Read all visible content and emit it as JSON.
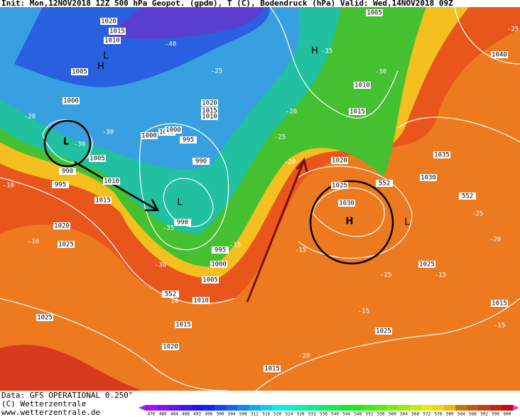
{
  "header": {
    "text": "Init: Mon,12NOV2018 12Z 500 hPa Geopot. (gpdm), T (C), Bodendruck (hPa) Valid: Wed,14NOV2018 09Z"
  },
  "footer": {
    "source": "Data: GFS OPERATIONAL 0.250°",
    "copyright": "(C) Wetterzentrale",
    "url": "www.wetterzentrale.de"
  },
  "colorbar": {
    "labels": [
      476,
      480,
      484,
      488,
      492,
      496,
      500,
      504,
      508,
      512,
      516,
      520,
      524,
      528,
      532,
      536,
      540,
      544,
      548,
      552,
      556,
      560,
      564,
      568,
      572,
      576,
      580,
      584,
      588,
      592,
      596,
      600
    ]
  },
  "isobar_labels": [
    "1020",
    "1015",
    "1010",
    "1005",
    "1000",
    "1005",
    "1010",
    "1015",
    "1020",
    "1025",
    "995",
    "990",
    "1000",
    "1005",
    "1000",
    "995",
    "990",
    "990",
    "995",
    "1000",
    "1005",
    "1010",
    "1015",
    "1020",
    "1025",
    "1015",
    "1025",
    "1025",
    "1030",
    "1035",
    "1040",
    "1020",
    "1025",
    "1030",
    "1015",
    "1010",
    "1005",
    "1020",
    "1015",
    "1010",
    "1015",
    "552",
    "552",
    "552"
  ],
  "temperature_labels": [
    "-40",
    "-35",
    "-30",
    "-25",
    "-20",
    "-30",
    "-30",
    "-10",
    "-10",
    "-35",
    "-30",
    "-20",
    "-15",
    "-15",
    "-20",
    "-25",
    "-20",
    "-15",
    "-15",
    "-15",
    "-20",
    "-15",
    "-20",
    "-25",
    "-25"
  ],
  "pressure_centers": [
    "H",
    "L",
    "H",
    "L",
    "L",
    "H",
    "L"
  ]
}
